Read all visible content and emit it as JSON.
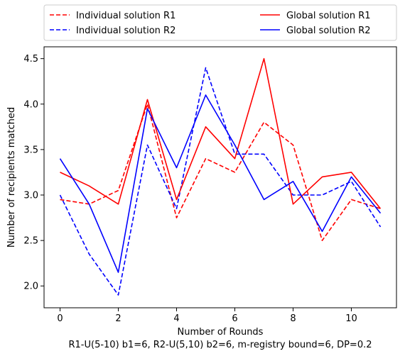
{
  "chart_data": {
    "type": "line",
    "title": "",
    "xlabel": "Number of Rounds",
    "subtitle": "R1-U(5-10) b1=6, R2-U(5,10) b2=6, m-registry bound=6, DP=0.2",
    "ylabel": "Number of recipients matched",
    "xlim": [
      -0.55,
      11.55
    ],
    "ylim": [
      1.76,
      4.63
    ],
    "xticks": [
      0,
      2,
      4,
      6,
      8,
      10
    ],
    "yticks": [
      2.0,
      2.5,
      3.0,
      3.5,
      4.0,
      4.5
    ],
    "xtick_labels": [
      "0",
      "2",
      "4",
      "6",
      "8",
      "10"
    ],
    "ytick_labels": [
      "2.0",
      "2.5",
      "3.0",
      "3.5",
      "4.0",
      "4.5"
    ],
    "grid": false,
    "legend_position": "above plot, two columns",
    "x": [
      0,
      1,
      2,
      3,
      4,
      5,
      6,
      7,
      8,
      9,
      10,
      11
    ],
    "series": [
      {
        "name": "Individual solution R1",
        "color": "#ff0000",
        "dash": "dashed",
        "values": [
          2.95,
          2.9,
          3.05,
          4.0,
          2.75,
          3.4,
          3.25,
          3.8,
          3.55,
          2.5,
          2.95,
          2.85
        ]
      },
      {
        "name": "Individual solution R2",
        "color": "#0000ff",
        "dash": "dashed",
        "values": [
          3.0,
          2.35,
          1.9,
          3.55,
          2.85,
          4.4,
          3.45,
          3.45,
          3.0,
          3.0,
          3.15,
          2.65
        ]
      },
      {
        "name": "Global solution R1",
        "color": "#ff0000",
        "dash": "solid",
        "values": [
          3.25,
          3.1,
          2.9,
          4.05,
          2.95,
          3.75,
          3.4,
          4.5,
          2.9,
          3.2,
          3.25,
          2.85
        ]
      },
      {
        "name": "Global solution R2",
        "color": "#0000ff",
        "dash": "solid",
        "values": [
          3.4,
          2.9,
          2.15,
          3.95,
          3.3,
          4.1,
          3.55,
          2.95,
          3.15,
          2.6,
          3.2,
          2.8
        ]
      }
    ]
  }
}
